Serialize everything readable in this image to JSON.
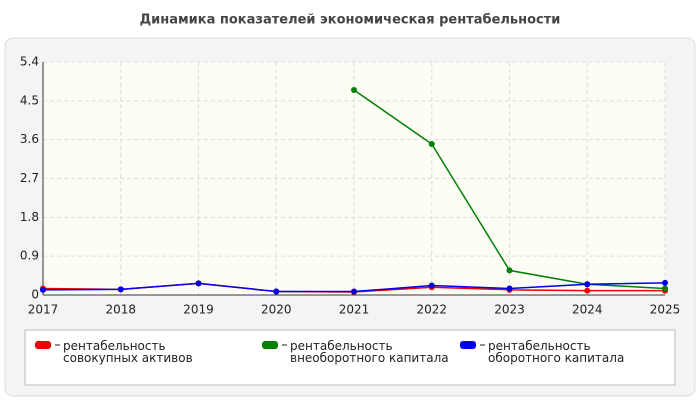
{
  "chart_data": {
    "type": "line",
    "title": "Динамика показателей экономическая рентабельности",
    "categories": [
      "2017",
      "2018",
      "2019",
      "2020",
      "2021",
      "2022",
      "2023",
      "2024",
      "2025"
    ],
    "series": [
      {
        "name": "рентабельность совокупных активов",
        "color": "#ee0000",
        "values": [
          0.15,
          0.13,
          0.27,
          0.08,
          0.07,
          0.18,
          0.12,
          0.1,
          0.1
        ]
      },
      {
        "name": "рентабельность внеоборотного капитала",
        "color": "#008000",
        "values": [
          null,
          null,
          null,
          null,
          4.75,
          3.5,
          0.57,
          0.25,
          0.15
        ]
      },
      {
        "name": "рентабельность оборотного капитала",
        "color": "#0000ee",
        "values": [
          0.12,
          0.13,
          0.27,
          0.08,
          0.08,
          0.22,
          0.15,
          0.25,
          0.28
        ]
      }
    ],
    "ylim": [
      0,
      5.4
    ],
    "yticks": [
      0,
      0.9,
      1.8,
      2.7,
      3.6,
      4.5,
      5.4
    ],
    "grid": true
  }
}
